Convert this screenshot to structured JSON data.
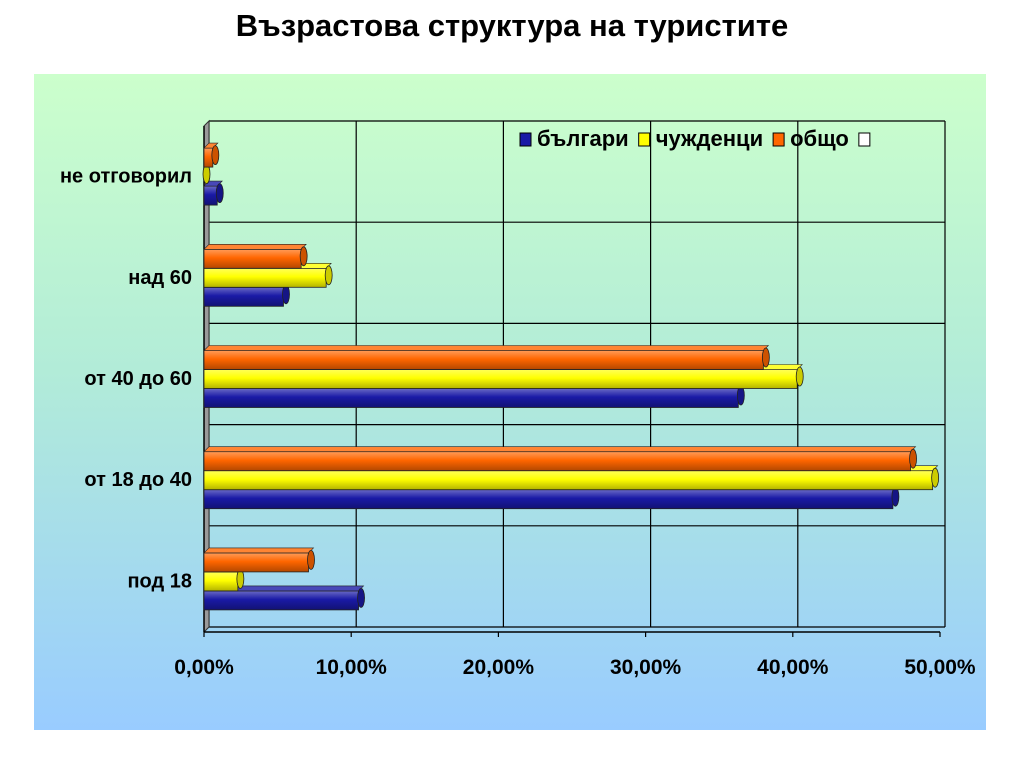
{
  "slide": {
    "title": "Възрастова структура на туристите"
  },
  "chart_data": {
    "type": "bar",
    "orientation": "horizontal",
    "title": "",
    "xlabel": "",
    "ylabel": "",
    "categories": [
      "под 18",
      "от 18 до 40",
      "от 40 до 60",
      "над 60",
      "не отговорил"
    ],
    "series": [
      {
        "name": "българи",
        "color": "#1a1aa6",
        "values": [
          10.5,
          46.8,
          36.3,
          5.4,
          0.9
        ]
      },
      {
        "name": "чужденци",
        "color": "#ffff00",
        "values": [
          2.3,
          49.5,
          40.3,
          8.3,
          0.0
        ]
      },
      {
        "name": "общо",
        "color": "#ff6600",
        "values": [
          7.1,
          48.0,
          38.0,
          6.6,
          0.6
        ]
      },
      {
        "name": "",
        "color": "#ffffff",
        "values": [
          0,
          0,
          0,
          0,
          0
        ]
      }
    ],
    "xlim": [
      0,
      50
    ],
    "x_ticks": [
      "0,00%",
      "10,00%",
      "20,00%",
      "30,00%",
      "40,00%",
      "50,00%"
    ],
    "grid": true,
    "legend_position": "top-right"
  }
}
